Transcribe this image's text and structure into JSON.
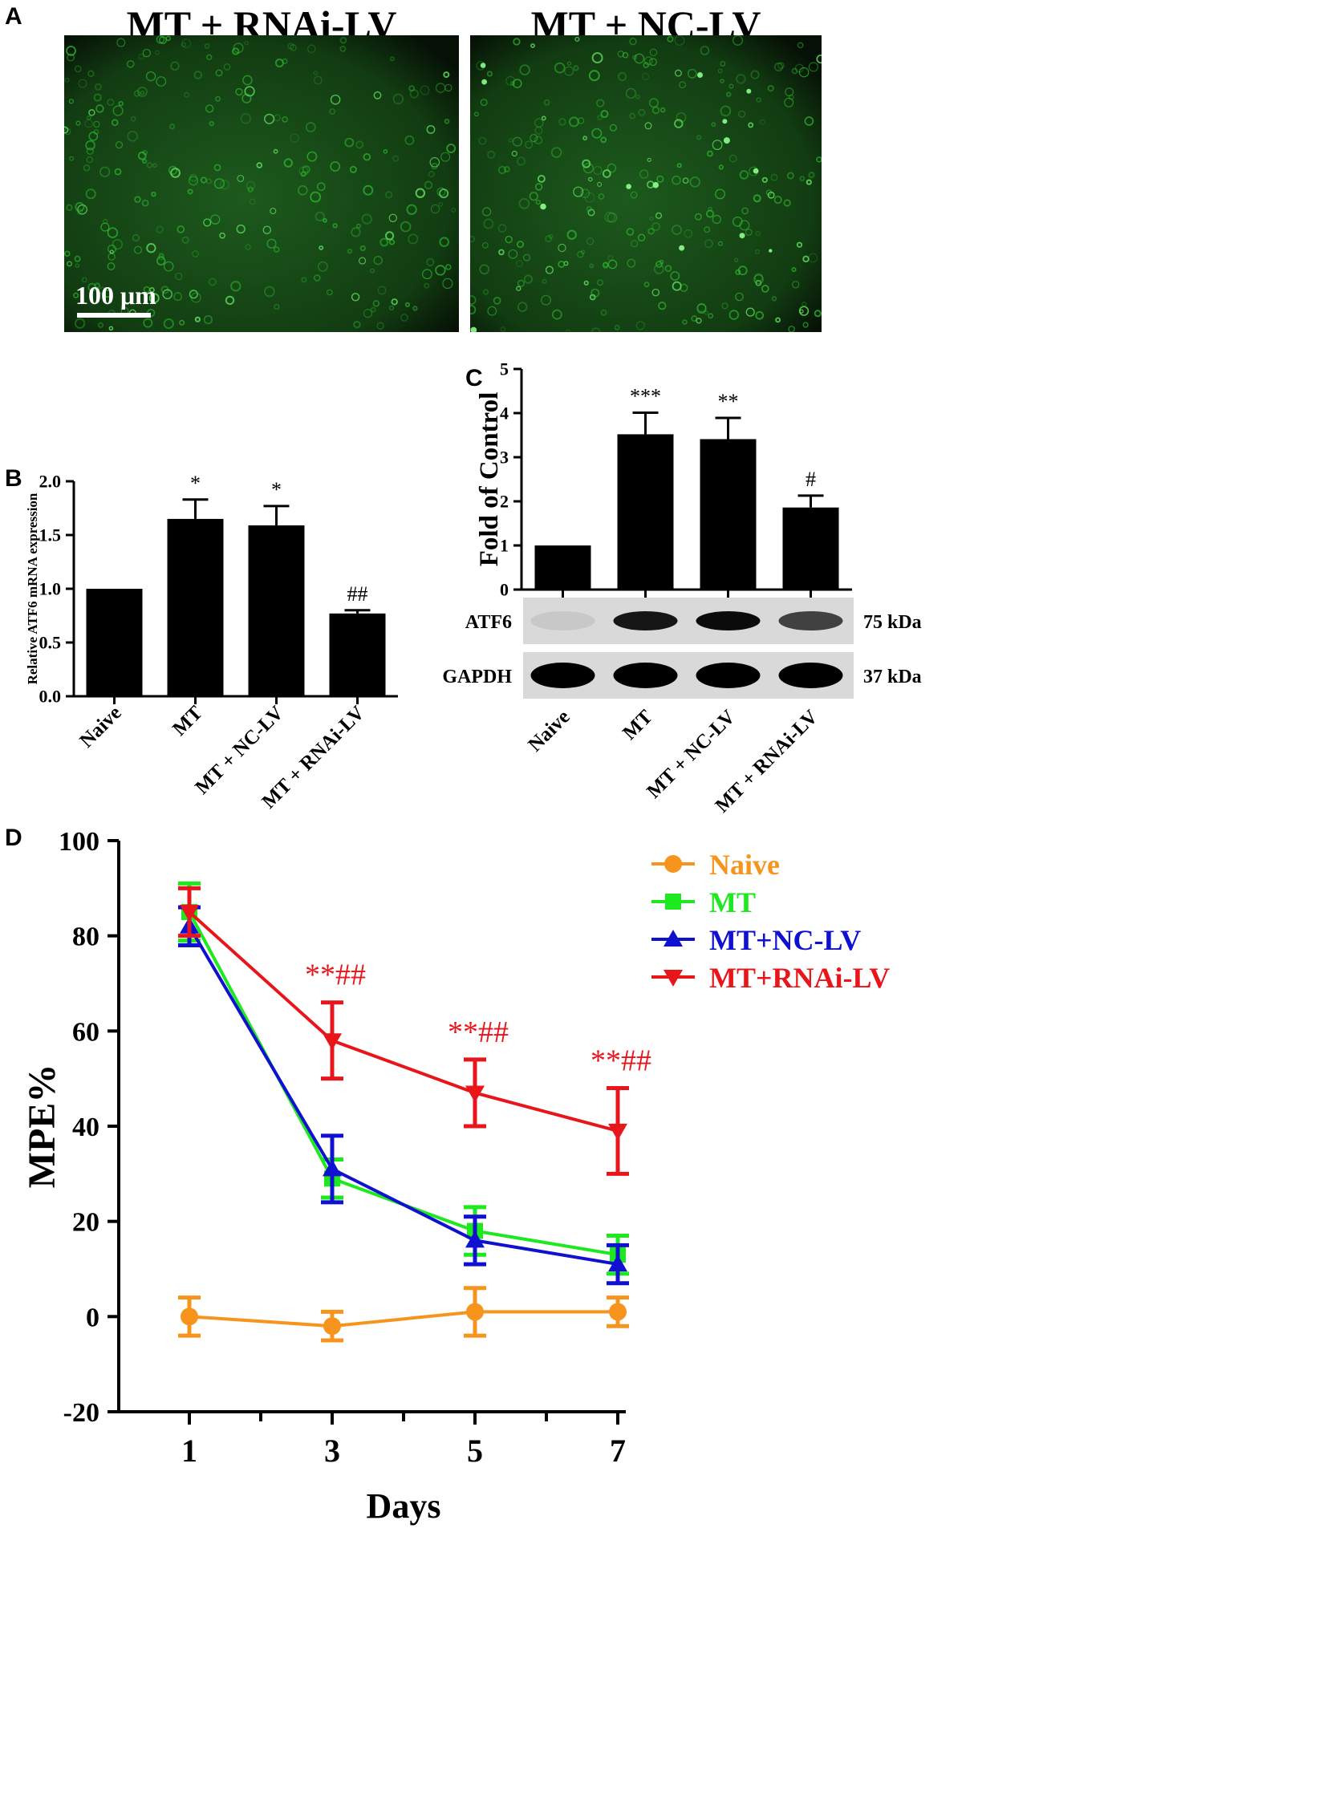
{
  "panelA": {
    "letter": "A",
    "images": [
      {
        "title": "MT + RNAi-LV",
        "scalebar": "100 μm"
      },
      {
        "title": "MT + NC-LV"
      }
    ],
    "colors": {
      "fluorescence": "#2fbf2f"
    }
  },
  "panelB": {
    "letter": "B",
    "chart_data": {
      "type": "bar",
      "categories": [
        "Naive",
        "MT",
        "MT + NC-LV",
        "MT + RNAi-LV"
      ],
      "values": [
        1.0,
        1.65,
        1.59,
        0.77
      ],
      "errors": [
        0,
        0.18,
        0.18,
        0.03
      ],
      "annotations": [
        "",
        "*",
        "*",
        "##"
      ],
      "ylabel": "Relative ATF6 mRNA expression",
      "ylim": [
        0,
        2.0
      ],
      "yticks": [
        "0.0",
        "0.5",
        "1.0",
        "1.5",
        "2.0"
      ]
    }
  },
  "panelC": {
    "letter": "C",
    "chart_data": {
      "type": "bar",
      "categories": [
        "Naive",
        "MT",
        "MT + NC-LV",
        "MT + RNAi-LV"
      ],
      "values": [
        1.0,
        3.52,
        3.41,
        1.86
      ],
      "errors": [
        0,
        0.49,
        0.48,
        0.27
      ],
      "annotations": [
        "",
        "***",
        "**",
        "#"
      ],
      "ylabel": "Fold of Control",
      "ylim": [
        0,
        5
      ],
      "yticks": [
        "0",
        "1",
        "2",
        "3",
        "4",
        "5"
      ]
    },
    "blot": {
      "rows": [
        {
          "label": "ATF6",
          "size": "75 kDa",
          "intensity": [
            0.08,
            0.9,
            0.95,
            0.7
          ]
        },
        {
          "label": "GAPDH",
          "size": "37 kDa",
          "intensity": [
            1,
            1,
            1,
            1
          ]
        }
      ]
    }
  },
  "panelD": {
    "letter": "D",
    "chart_data": {
      "type": "line",
      "x": [
        1,
        3,
        5,
        7
      ],
      "xticks": [
        "1",
        "3",
        "5",
        "7"
      ],
      "xlabel": "Days",
      "ylabel": "MPE%",
      "ylim": [
        -20,
        100
      ],
      "yticks": [
        "-20",
        "0",
        "20",
        "40",
        "60",
        "80",
        "100"
      ],
      "legend_position": "top-right",
      "series": [
        {
          "name": "Naive",
          "color": "#f7941d",
          "marker": "circle",
          "values": [
            0,
            -2,
            1,
            1
          ],
          "errors": [
            4,
            3,
            5,
            3
          ]
        },
        {
          "name": "MT",
          "color": "#1ee81e",
          "marker": "square",
          "values": [
            85,
            29,
            18,
            13
          ],
          "errors": [
            6,
            4,
            5,
            4
          ]
        },
        {
          "name": "MT+NC-LV",
          "color": "#1010d0",
          "marker": "triangle-up",
          "values": [
            82,
            31,
            16,
            11
          ],
          "errors": [
            4,
            7,
            5,
            4
          ]
        },
        {
          "name": "MT+RNAi-LV",
          "color": "#e8161b",
          "marker": "triangle-down",
          "values": [
            85,
            58,
            47,
            39
          ],
          "errors": [
            5,
            8,
            7,
            9
          ]
        }
      ],
      "annotations": [
        {
          "x": 3,
          "text": "**##"
        },
        {
          "x": 5,
          "text": "**##"
        },
        {
          "x": 7,
          "text": "**##"
        }
      ]
    }
  }
}
